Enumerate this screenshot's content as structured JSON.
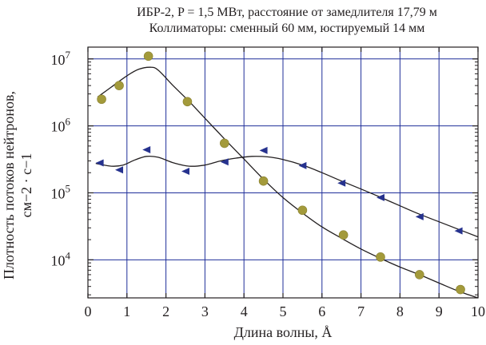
{
  "chart_data": {
    "type": "scatter",
    "title_lines": [
      "ИБР-2, P = 1,5 МВт, расстояние от замедлителя 17,79 м",
      "Коллиматоры: сменный 60 мм, юстируемый 14 мм"
    ],
    "xlabel": "Длина волны, Å",
    "ylabel_lines": [
      "Плотность потоков нейтронов,",
      "см−2 · с−1"
    ],
    "xlim": [
      0,
      10
    ],
    "ylim": [
      2700,
      15000000
    ],
    "y_scale": "log",
    "x_ticks": [
      0,
      1,
      2,
      3,
      4,
      5,
      6,
      7,
      8,
      9,
      10
    ],
    "y_ticks": [
      {
        "value": 10000,
        "base": "10",
        "exp": "4"
      },
      {
        "value": 100000,
        "base": "10",
        "exp": "5"
      },
      {
        "value": 1000000,
        "base": "10",
        "exp": "6"
      },
      {
        "value": 10000000,
        "base": "10",
        "exp": "7"
      }
    ],
    "grid": true,
    "colors": {
      "grid": "#1f2f9a",
      "axis": "#231f20",
      "circle": "#a39a3b",
      "triangle": "#26328e",
      "curve": "#231f20"
    },
    "series": [
      {
        "marker": "circle",
        "points": [
          [
            0.35,
            2500000
          ],
          [
            0.8,
            4000000
          ],
          [
            1.55,
            11000000
          ],
          [
            2.55,
            2300000
          ],
          [
            3.5,
            550000
          ],
          [
            4.5,
            150000
          ],
          [
            5.5,
            55000
          ],
          [
            6.55,
            23500
          ],
          [
            7.5,
            11000
          ],
          [
            8.5,
            6000
          ],
          [
            9.55,
            3600
          ]
        ],
        "curve": [
          [
            0.25,
            2700000
          ],
          [
            0.6,
            3800000
          ],
          [
            1.0,
            5600000
          ],
          [
            1.3,
            7000000
          ],
          [
            1.6,
            7500000
          ],
          [
            1.8,
            6800000
          ],
          [
            2.2,
            3900000
          ],
          [
            2.6,
            2300000
          ],
          [
            3.0,
            1300000
          ],
          [
            3.5,
            640000
          ],
          [
            4.0,
            320000
          ],
          [
            4.5,
            160000
          ],
          [
            5.0,
            85000
          ],
          [
            5.5,
            50000
          ],
          [
            6.0,
            31000
          ],
          [
            6.5,
            21000
          ],
          [
            7.0,
            14500
          ],
          [
            7.5,
            10500
          ],
          [
            8.0,
            7800
          ],
          [
            8.5,
            6000
          ],
          [
            9.0,
            4500
          ],
          [
            9.5,
            3400
          ],
          [
            10.0,
            2700
          ]
        ]
      },
      {
        "marker": "triangle",
        "points": [
          [
            0.3,
            280000
          ],
          [
            0.8,
            220000
          ],
          [
            1.5,
            440000
          ],
          [
            2.5,
            210000
          ],
          [
            3.5,
            290000
          ],
          [
            4.5,
            430000
          ],
          [
            5.5,
            255000
          ],
          [
            6.5,
            140000
          ],
          [
            7.5,
            85000
          ],
          [
            8.5,
            44000
          ],
          [
            9.5,
            27000
          ]
        ],
        "curve": [
          [
            0.2,
            275000
          ],
          [
            0.6,
            250000
          ],
          [
            0.9,
            260000
          ],
          [
            1.2,
            310000
          ],
          [
            1.5,
            350000
          ],
          [
            1.8,
            340000
          ],
          [
            2.2,
            280000
          ],
          [
            2.6,
            250000
          ],
          [
            3.0,
            260000
          ],
          [
            3.4,
            300000
          ],
          [
            3.8,
            330000
          ],
          [
            4.2,
            350000
          ],
          [
            4.6,
            345000
          ],
          [
            5.0,
            315000
          ],
          [
            5.5,
            260000
          ],
          [
            6.0,
            200000
          ],
          [
            6.5,
            150000
          ],
          [
            7.0,
            114000
          ],
          [
            7.5,
            86000
          ],
          [
            8.0,
            64000
          ],
          [
            8.5,
            48000
          ],
          [
            9.0,
            37000
          ],
          [
            9.5,
            28500
          ],
          [
            10.0,
            22000
          ]
        ]
      }
    ]
  }
}
